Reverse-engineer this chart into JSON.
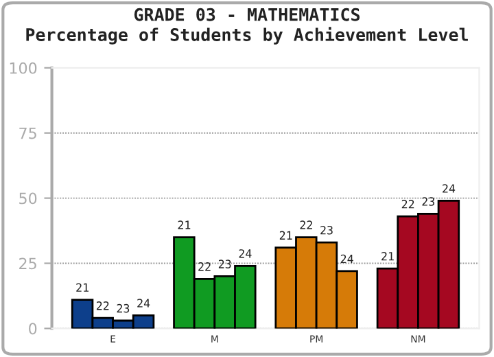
{
  "chart_data": {
    "type": "bar",
    "title": "GRADE 03 - MATHEMATICS",
    "subtitle": "Percentage of Students by Achievement Level",
    "categories": [
      "E",
      "M",
      "PM",
      "NM"
    ],
    "series": [
      {
        "name": "21",
        "colors": [
          "#0d3f8b",
          "#109b22",
          "#d67b08",
          "#a50821"
        ],
        "values": [
          11,
          35,
          31,
          23
        ]
      },
      {
        "name": "22",
        "colors": [
          "#0d3f8b",
          "#109b22",
          "#d67b08",
          "#a50821"
        ],
        "values": [
          4,
          19,
          35,
          43
        ]
      },
      {
        "name": "23",
        "colors": [
          "#0d3f8b",
          "#109b22",
          "#d67b08",
          "#a50821"
        ],
        "values": [
          3,
          20,
          33,
          44
        ]
      },
      {
        "name": "24",
        "colors": [
          "#0d3f8b",
          "#109b22",
          "#d67b08",
          "#a50821"
        ],
        "values": [
          5,
          24,
          22,
          49
        ]
      }
    ],
    "ylim": [
      0,
      100
    ],
    "yticks": [
      0,
      25,
      50,
      75,
      100
    ],
    "grid": "y",
    "legend": false
  }
}
